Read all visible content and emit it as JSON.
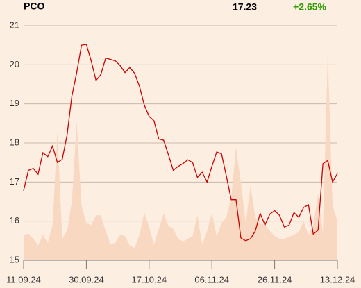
{
  "header": {
    "symbol": "PCO",
    "price": "17.23",
    "change": "+2.65%"
  },
  "chart_data": {
    "type": "line",
    "x": [
      0,
      1,
      2,
      3,
      4,
      5,
      6,
      7,
      8,
      9,
      10,
      11,
      12,
      13,
      14,
      15,
      16,
      17,
      18,
      19,
      20,
      21,
      22,
      23,
      24,
      25,
      26,
      27,
      28,
      29,
      30,
      31,
      32,
      33,
      34,
      35,
      36,
      37,
      38,
      39,
      40,
      41,
      42,
      43,
      44,
      45,
      46,
      47,
      48,
      49,
      50,
      51,
      52,
      53,
      54,
      55,
      56,
      57,
      58,
      59,
      60,
      61,
      62,
      63,
      64,
      65
    ],
    "series": [
      {
        "type": "area",
        "color": "#f9d8c2",
        "values": [
          15.65,
          15.68,
          15.55,
          15.38,
          15.65,
          15.45,
          15.9,
          18.3,
          15.55,
          15.75,
          16.5,
          18.55,
          16.4,
          15.95,
          15.9,
          16.15,
          16.15,
          15.75,
          15.4,
          15.45,
          15.65,
          15.62,
          15.38,
          15.32,
          15.65,
          16.22,
          15.85,
          15.4,
          15.8,
          16.2,
          15.88,
          15.8,
          15.55,
          15.48,
          15.55,
          15.62,
          16.15,
          15.4,
          15.75,
          16.22,
          15.6,
          15.95,
          16.1,
          16.6,
          17.9,
          17.0,
          15.95,
          16.9,
          16.1,
          15.95,
          15.9,
          15.75,
          15.62,
          15.55,
          15.55,
          15.6,
          15.65,
          15.72,
          16.0,
          15.65,
          15.9,
          16.7,
          15.7,
          20.3,
          16.4,
          16.0
        ]
      },
      {
        "type": "line",
        "color": "#cc0000",
        "values": [
          16.78,
          17.3,
          17.35,
          17.2,
          17.75,
          17.65,
          17.92,
          17.5,
          17.58,
          18.2,
          19.2,
          19.8,
          20.5,
          20.52,
          20.1,
          19.6,
          19.75,
          20.17,
          20.14,
          20.1,
          19.98,
          19.8,
          19.93,
          19.78,
          19.45,
          18.97,
          18.68,
          18.57,
          18.1,
          18.07,
          17.7,
          17.3,
          17.4,
          17.47,
          17.57,
          17.5,
          17.12,
          17.25,
          17.0,
          17.4,
          17.77,
          17.72,
          17.15,
          16.55,
          16.55,
          15.57,
          15.5,
          15.55,
          15.75,
          16.2,
          15.9,
          16.18,
          16.27,
          16.15,
          15.85,
          15.9,
          16.22,
          16.1,
          16.35,
          16.42,
          15.67,
          15.77,
          17.47,
          17.55,
          17.0,
          17.22
        ]
      }
    ],
    "xlim": [
      0,
      65
    ],
    "xticks": [
      {
        "value": 0,
        "label": "11.09.24"
      },
      {
        "value": 13,
        "label": "30.09.24"
      },
      {
        "value": 26,
        "label": "17.10.24"
      },
      {
        "value": 39,
        "label": "06.11.24"
      },
      {
        "value": 52,
        "label": "26.11.24"
      },
      {
        "value": 65,
        "label": "13.12.24"
      }
    ],
    "ylim": [
      15,
      21
    ],
    "yticks": [
      15,
      16,
      17,
      18,
      19,
      20,
      21
    ],
    "grid": true
  }
}
